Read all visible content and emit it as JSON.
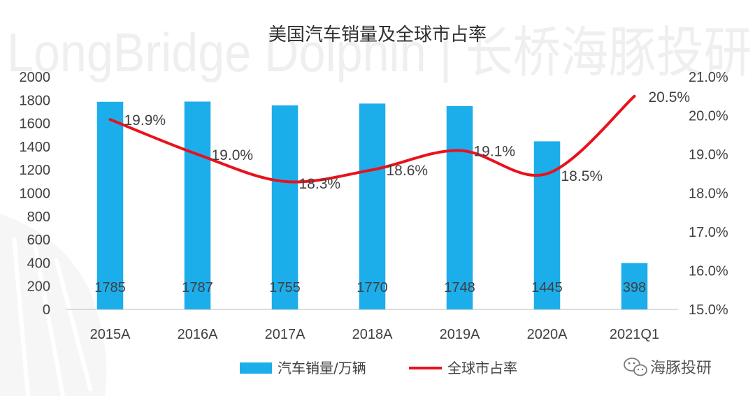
{
  "watermark": {
    "text": "LongBridge Dolphin | 长桥海豚投研",
    "brand": "海豚投研"
  },
  "colors": {
    "bar": "#1CADEB",
    "line": "#E8121C",
    "axis": "#D0D0D0",
    "text": "#404040",
    "watermark": "#EFEFEF"
  },
  "chart_data": {
    "type": "bar",
    "title": "美国汽车销量及全球市占率",
    "categories": [
      "2015A",
      "2016A",
      "2017A",
      "2018A",
      "2019A",
      "2020A",
      "2021Q1"
    ],
    "series": [
      {
        "name": "汽车销量/万辆",
        "type": "bar",
        "axis": "left",
        "values": [
          1785,
          1787,
          1755,
          1770,
          1748,
          1445,
          398
        ],
        "labels": [
          "1785",
          "1787",
          "1755",
          "1770",
          "1748",
          "1445",
          "398"
        ]
      },
      {
        "name": "全球市占率",
        "type": "line",
        "axis": "right",
        "smooth": true,
        "values": [
          19.9,
          19.0,
          18.3,
          18.6,
          19.1,
          18.5,
          20.5
        ],
        "labels": [
          "19.9%",
          "19.0%",
          "18.3%",
          "18.6%",
          "19.1%",
          "18.5%",
          "20.5%"
        ]
      }
    ],
    "y_left": {
      "min": 0,
      "max": 2000,
      "ticks": [
        "0",
        "200",
        "400",
        "600",
        "800",
        "1000",
        "1200",
        "1400",
        "1600",
        "1800",
        "2000"
      ]
    },
    "y_right": {
      "min": 15.0,
      "max": 21.0,
      "ticks": [
        "15.0%",
        "16.0%",
        "17.0%",
        "18.0%",
        "19.0%",
        "20.0%",
        "21.0%"
      ]
    },
    "grid": false,
    "legend": "bottom"
  }
}
